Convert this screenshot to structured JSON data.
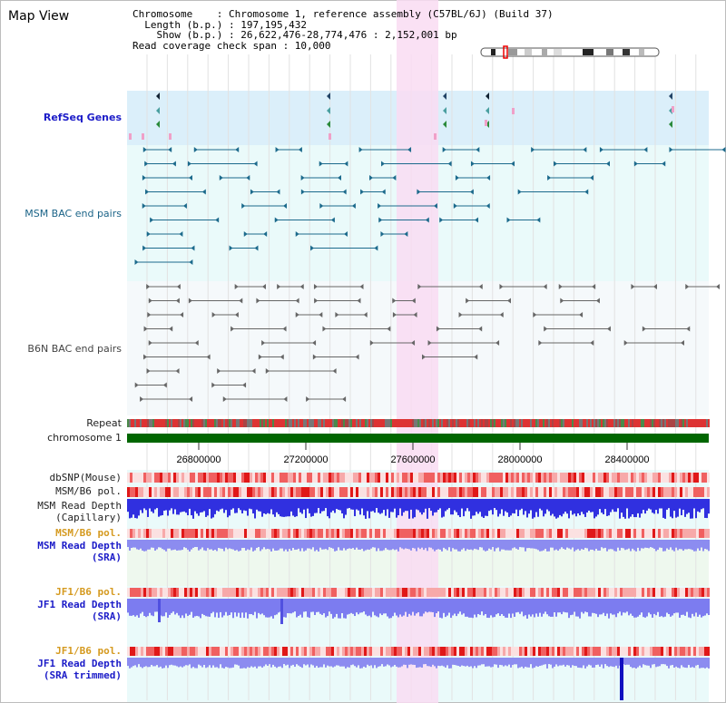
{
  "title": "Map View",
  "header": {
    "chromosome_line": "Chromosome    : Chromosome 1, reference assembly (C57BL/6J) (Build 37)",
    "length_line": "  Length (b.p.) : 197,195,432",
    "show_line": "    Show (b.p.) : 26,622,476-28,774,476 : 2,152,001 bp",
    "coverage_line": "Read coverage check span : 10,000"
  },
  "tracks": {
    "refseq": "RefSeq Genes",
    "msm_bac": "MSM BAC end pairs",
    "b6n_bac": "B6N BAC end pairs",
    "repeat": "Repeat",
    "chromosome": "chromosome 1",
    "dbsnp": "dbSNP(Mouse)",
    "msm_b6_pol_1": "MSM/B6 pol.",
    "msm_read_depth_cap": "MSM Read Depth",
    "msm_read_depth_cap_sub": "(Capillary)",
    "msm_b6_pol_2": "MSM/B6 pol.",
    "msm_read_depth_sra": "MSM Read Depth",
    "msm_read_depth_sra_sub": "(SRA)",
    "jf1_b6_pol_1": "JF1/B6 pol.",
    "jf1_read_depth_sra": "JF1 Read Depth",
    "jf1_read_depth_sra_sub": "(SRA)",
    "jf1_b6_pol_2": "JF1/B6 pol.",
    "jf1_read_depth_trim": "JF1 Read Depth",
    "jf1_read_depth_trim_sub": "(SRA trimmed)"
  },
  "axis_ticks": [
    "26800000",
    "27200000",
    "27600000",
    "28000000",
    "28400000"
  ],
  "colors": {
    "refseq_bg": "#dbeffa",
    "bac_bg": "#eafafa",
    "b6n_bg": "#f5f9fb",
    "highlight": "#f9dcf2",
    "chromosome_bar": "#006600",
    "depth_blue": "#2828e0",
    "depth_light": "#8a8af0",
    "pol_red": "#f04040"
  }
}
